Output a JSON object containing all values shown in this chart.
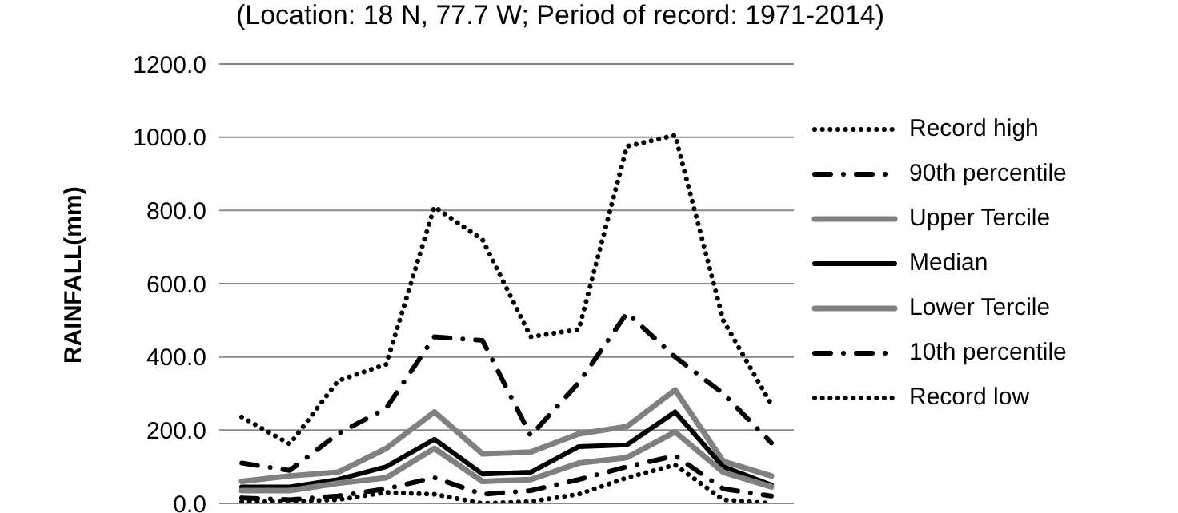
{
  "chart_data": {
    "type": "line",
    "subtitle": "(Location: 18 N, 77.7 W; Period of record: 1971-2014)",
    "ylabel": "RAINFALL(mm)",
    "categories": [
      null,
      null,
      null,
      null,
      null,
      null,
      null,
      null,
      null,
      null,
      null,
      null
    ],
    "series": [
      {
        "name": "Record high",
        "color": "#000000",
        "line_style": "dotted",
        "values": [
          236,
          162,
          335,
          380,
          810,
          720,
          455,
          475,
          975,
          1005,
          500,
          270
        ]
      },
      {
        "name": "90th percentile",
        "color": "#000000",
        "line_style": "dashdot",
        "values": [
          110,
          90,
          190,
          260,
          455,
          445,
          185,
          330,
          520,
          400,
          300,
          165
        ]
      },
      {
        "name": "Upper Tercile",
        "color": "#808080",
        "line_style": "solid",
        "values": [
          60,
          75,
          85,
          150,
          250,
          135,
          140,
          190,
          210,
          310,
          115,
          75
        ]
      },
      {
        "name": "Median",
        "color": "#000000",
        "line_style": "solid",
        "values": [
          45,
          45,
          65,
          100,
          175,
          80,
          85,
          155,
          160,
          250,
          100,
          50
        ]
      },
      {
        "name": "Lower Tercile",
        "color": "#808080",
        "line_style": "solid",
        "values": [
          35,
          35,
          55,
          70,
          150,
          60,
          65,
          110,
          125,
          195,
          85,
          45
        ]
      },
      {
        "name": "10th percentile",
        "color": "#000000",
        "line_style": "dashdot",
        "values": [
          15,
          10,
          20,
          40,
          70,
          25,
          35,
          65,
          100,
          130,
          40,
          20
        ]
      },
      {
        "name": "Record low",
        "color": "#000000",
        "line_style": "dotted",
        "values": [
          5,
          5,
          10,
          30,
          25,
          0,
          5,
          25,
          70,
          105,
          10,
          0
        ]
      }
    ],
    "ylim": [
      0,
      1200
    ],
    "yticks": [
      {
        "value": 0,
        "label": "0.0"
      },
      {
        "value": 200,
        "label": "200.0"
      },
      {
        "value": 400,
        "label": "400.0"
      },
      {
        "value": 600,
        "label": "600.0"
      },
      {
        "value": 800,
        "label": "800.0"
      },
      {
        "value": 1000,
        "label": "1000.0"
      },
      {
        "value": 1200,
        "label": "1200.0"
      }
    ],
    "grid": "y",
    "legend": "right",
    "marker": "none"
  }
}
